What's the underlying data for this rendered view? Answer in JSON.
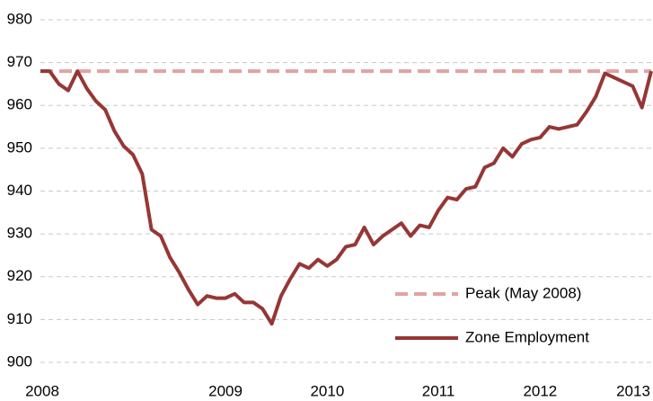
{
  "chart_data": {
    "type": "line",
    "categories": [
      "2008",
      null,
      null,
      null,
      null,
      null,
      null,
      null,
      null,
      null,
      null,
      null,
      null,
      null,
      null,
      null,
      null,
      null,
      null,
      null,
      "2009",
      null,
      null,
      null,
      null,
      null,
      null,
      null,
      null,
      null,
      null,
      "2010",
      null,
      null,
      null,
      null,
      null,
      null,
      null,
      null,
      null,
      null,
      null,
      "2011",
      null,
      null,
      null,
      null,
      null,
      null,
      null,
      null,
      null,
      null,
      "2012",
      null,
      null,
      null,
      null,
      null,
      null,
      null,
      null,
      null,
      null,
      "2013",
      null
    ],
    "series": [
      {
        "name": "Zone Employment",
        "color": "#953735",
        "values": [
          968,
          968,
          965,
          963.5,
          968,
          964,
          961,
          959,
          954,
          950.5,
          948.5,
          944,
          931,
          929.5,
          924.5,
          921,
          917,
          913.5,
          915.5,
          915,
          915,
          916,
          914,
          914,
          912.5,
          909,
          915.5,
          919.5,
          923,
          922,
          924,
          922.5,
          924,
          927,
          927.5,
          931.5,
          927.5,
          929.5,
          931,
          932.5,
          929.5,
          932,
          931.5,
          935.5,
          938.5,
          938,
          940.5,
          941,
          945.5,
          946.5,
          950,
          948,
          951,
          952,
          952.5,
          955,
          954.5,
          955,
          955.5,
          958.5,
          962,
          967.5,
          966.5,
          965.5,
          964.5,
          959.5,
          968
        ]
      }
    ],
    "reference_line": {
      "name": "Peak (May 2008)",
      "value": 968,
      "color": "#e0a3a3"
    },
    "ylim": [
      900,
      980
    ],
    "yticks": [
      900,
      910,
      920,
      930,
      940,
      950,
      960,
      970,
      980
    ],
    "grid": true,
    "legend": "bottom-right"
  }
}
